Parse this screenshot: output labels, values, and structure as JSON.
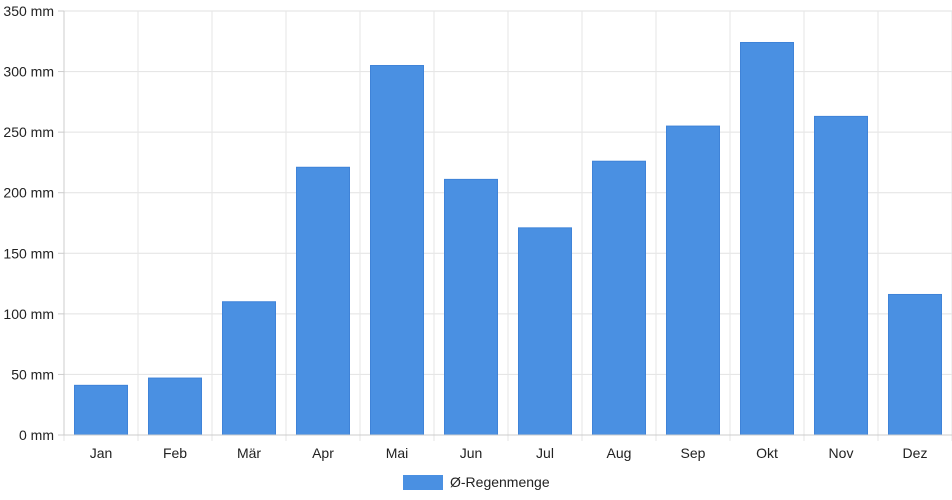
{
  "chart_data": {
    "type": "bar",
    "categories": [
      "Jan",
      "Feb",
      "Mär",
      "Apr",
      "Mai",
      "Jun",
      "Jul",
      "Aug",
      "Sep",
      "Okt",
      "Nov",
      "Dez"
    ],
    "series": [
      {
        "name": "Ø-Regenmenge",
        "color": "#4a90e2",
        "values": [
          41,
          47,
          110,
          221,
          305,
          211,
          171,
          226,
          255,
          324,
          263,
          116
        ]
      }
    ],
    "y_ticks": [
      "0 mm",
      "50 mm",
      "100 mm",
      "150 mm",
      "200 mm",
      "250 mm",
      "300 mm",
      "350 mm"
    ],
    "ylim": [
      0,
      350
    ],
    "y_tick_step": 50,
    "grid": true,
    "legend": "bottom-center"
  }
}
